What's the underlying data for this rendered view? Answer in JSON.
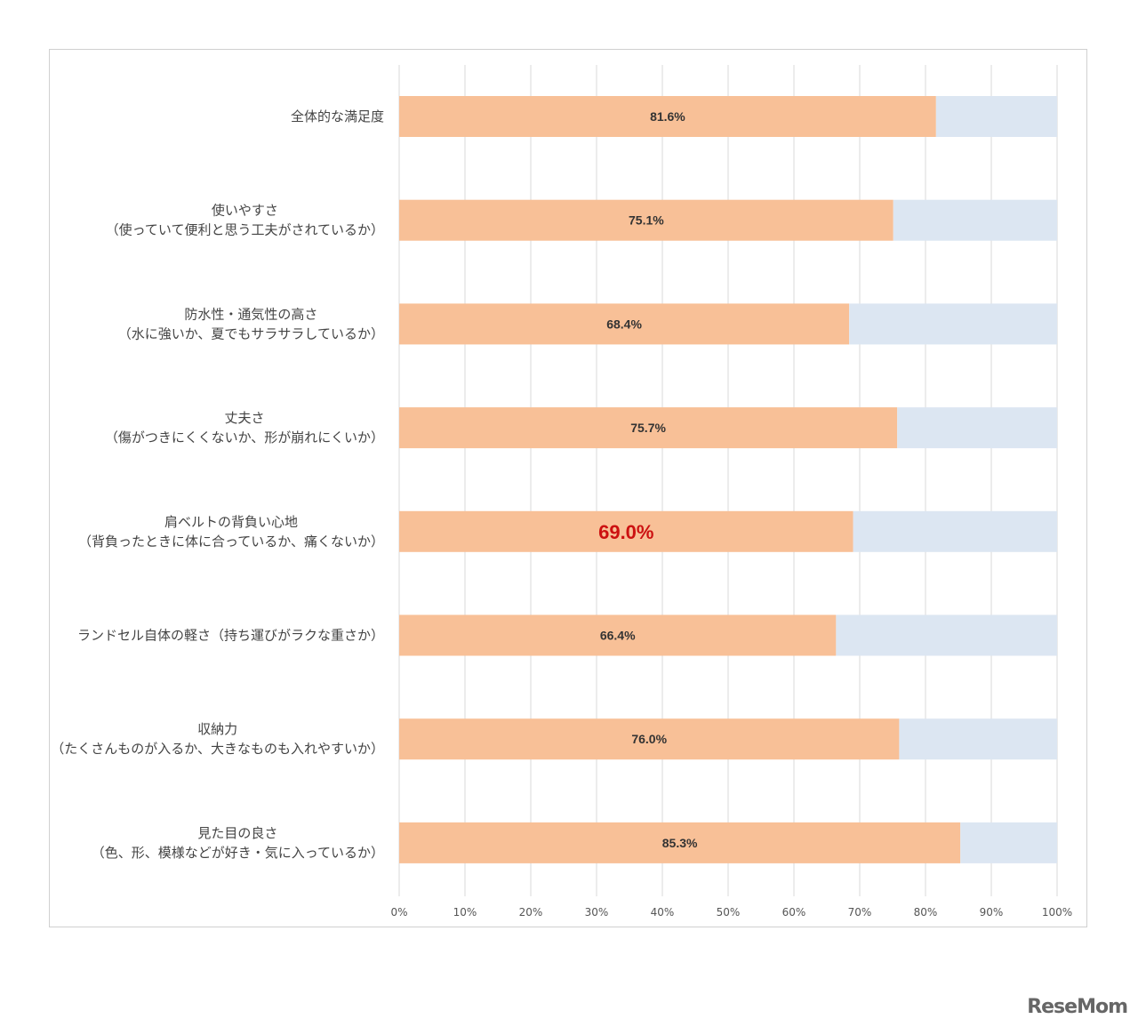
{
  "chart_data": {
    "type": "bar",
    "orientation": "horizontal",
    "stacked": true,
    "categories": [
      [
        "全体的な満足度"
      ],
      [
        "使いやすさ",
        "（使っていて便利と思う工夫がされているか）"
      ],
      [
        "防水性・通気性の高さ",
        "（水に強いか、夏でもサラサラしているか）"
      ],
      [
        "丈夫さ",
        "（傷がつきにくくないか、形が崩れにくいか）"
      ],
      [
        "肩ベルトの背負い心地",
        "（背負ったときに体に合っているか、痛くないか）"
      ],
      [
        "ランドセル自体の軽さ（持ち運びがラクな重さか）"
      ],
      [
        "収納力",
        "（たくさんものが入るか、大きなものも入れやすいか）"
      ],
      [
        "見た目の良さ",
        "（色、形、模様などが好き・気に入っているか）"
      ]
    ],
    "values": [
      81.6,
      75.1,
      68.4,
      75.7,
      69.0,
      66.4,
      76.0,
      85.3
    ],
    "value_labels": [
      "81.6%",
      "75.1%",
      "68.4%",
      "75.7%",
      "69.0%",
      "66.4%",
      "76.0%",
      "85.3%"
    ],
    "highlight_index": 4,
    "xlim": [
      0,
      100
    ],
    "x_ticks": [
      "0%",
      "10%",
      "20%",
      "30%",
      "40%",
      "50%",
      "60%",
      "70%",
      "80%",
      "90%",
      "100%"
    ],
    "grid": true,
    "colors": {
      "bar": "#f8c097",
      "remainder": "#dce6f2",
      "grid": "#d9d9d9",
      "highlight_text": "#cc1111"
    }
  },
  "watermark": "ReseMom"
}
